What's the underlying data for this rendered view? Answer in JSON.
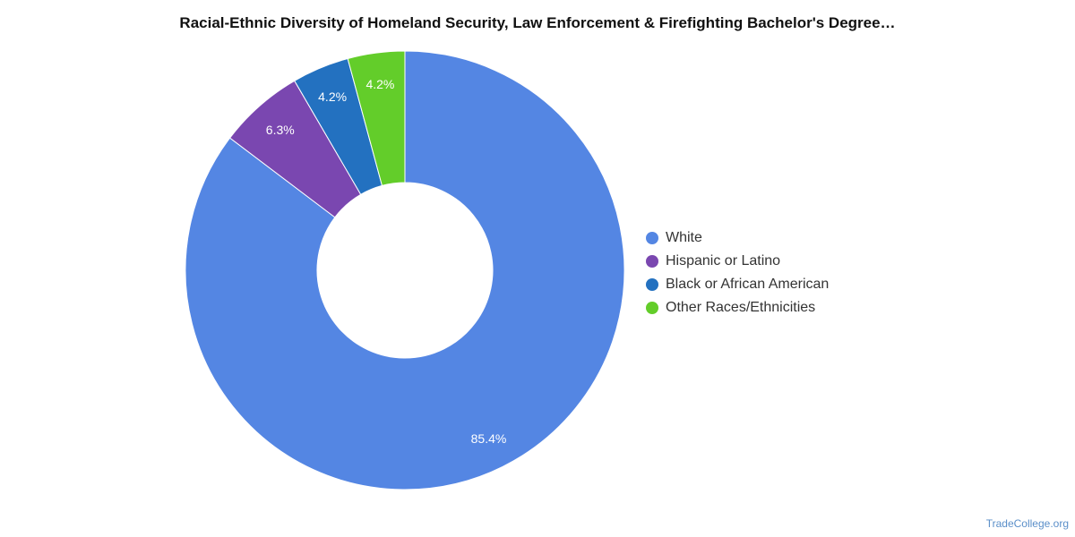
{
  "chart_data": {
    "type": "pie",
    "title": "Racial-Ethnic Diversity of Homeland Security, Law Enforcement & Firefighting Bachelor's Degree…",
    "categories": [
      "White",
      "Hispanic or Latino",
      "Black or African American",
      "Other Races/Ethnicities"
    ],
    "values": [
      85.4,
      6.3,
      4.2,
      4.2
    ],
    "value_labels": [
      "85.4%",
      "6.3%",
      "4.2%",
      "4.2%"
    ],
    "colors": [
      "#5486e3",
      "#7a47b0",
      "#2371c0",
      "#63cd2a"
    ],
    "style": "donut",
    "legend_placement": "right"
  },
  "watermark": "TradeCollege.org"
}
